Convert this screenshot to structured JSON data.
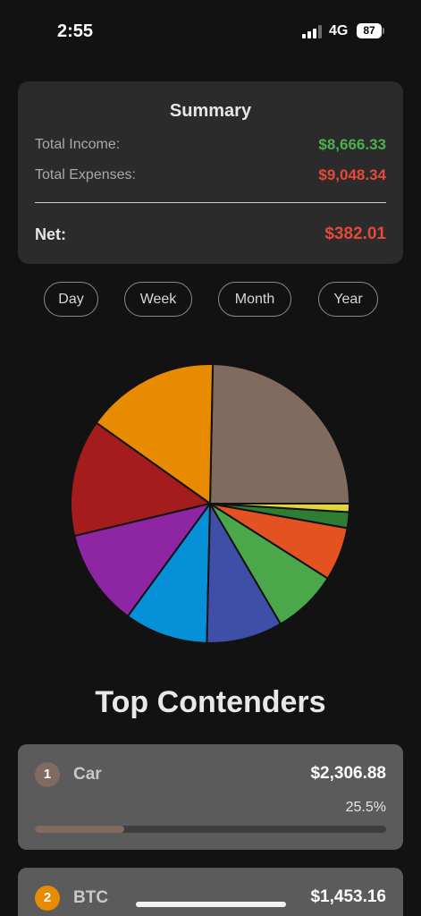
{
  "status_bar": {
    "time": "2:55",
    "network": "4G",
    "battery": "87"
  },
  "summary": {
    "title": "Summary",
    "income_label": "Total Income:",
    "income_value": "$8,666.33",
    "expenses_label": "Total Expenses:",
    "expenses_value": "$9,048.34",
    "net_label": "Net:",
    "net_value": "$382.01",
    "colors": {
      "income": "#4caf50",
      "expenses": "#e5493a",
      "net": "#e5493a"
    }
  },
  "periods": [
    "Day",
    "Week",
    "Month",
    "Year"
  ],
  "chart_data": {
    "type": "pie",
    "title": "",
    "slices": [
      {
        "value": 25.5,
        "color": "#816a5e"
      },
      {
        "value": 16.0,
        "color": "#e88b00"
      },
      {
        "value": 14.0,
        "color": "#a51c1c"
      },
      {
        "value": 11.6,
        "color": "#8e26a4"
      },
      {
        "value": 10.0,
        "color": "#0690d8"
      },
      {
        "value": 9.1,
        "color": "#3f4ea6"
      },
      {
        "value": 7.8,
        "color": "#4aa84a"
      },
      {
        "value": 6.4,
        "color": "#e55222"
      },
      {
        "value": 1.9,
        "color": "#2f7d32"
      },
      {
        "value": 1.0,
        "color": "#e2d43c"
      }
    ]
  },
  "top_contenders": {
    "title": "Top Contenders",
    "items": [
      {
        "rank": "1",
        "name": "Car",
        "amount": "$2,306.88",
        "percent_label": "25.5%",
        "percent": 25.5,
        "color": "#816a5e"
      },
      {
        "rank": "2",
        "name": "BTC",
        "amount": "$1,453.16",
        "color": "#e88b00"
      }
    ]
  }
}
